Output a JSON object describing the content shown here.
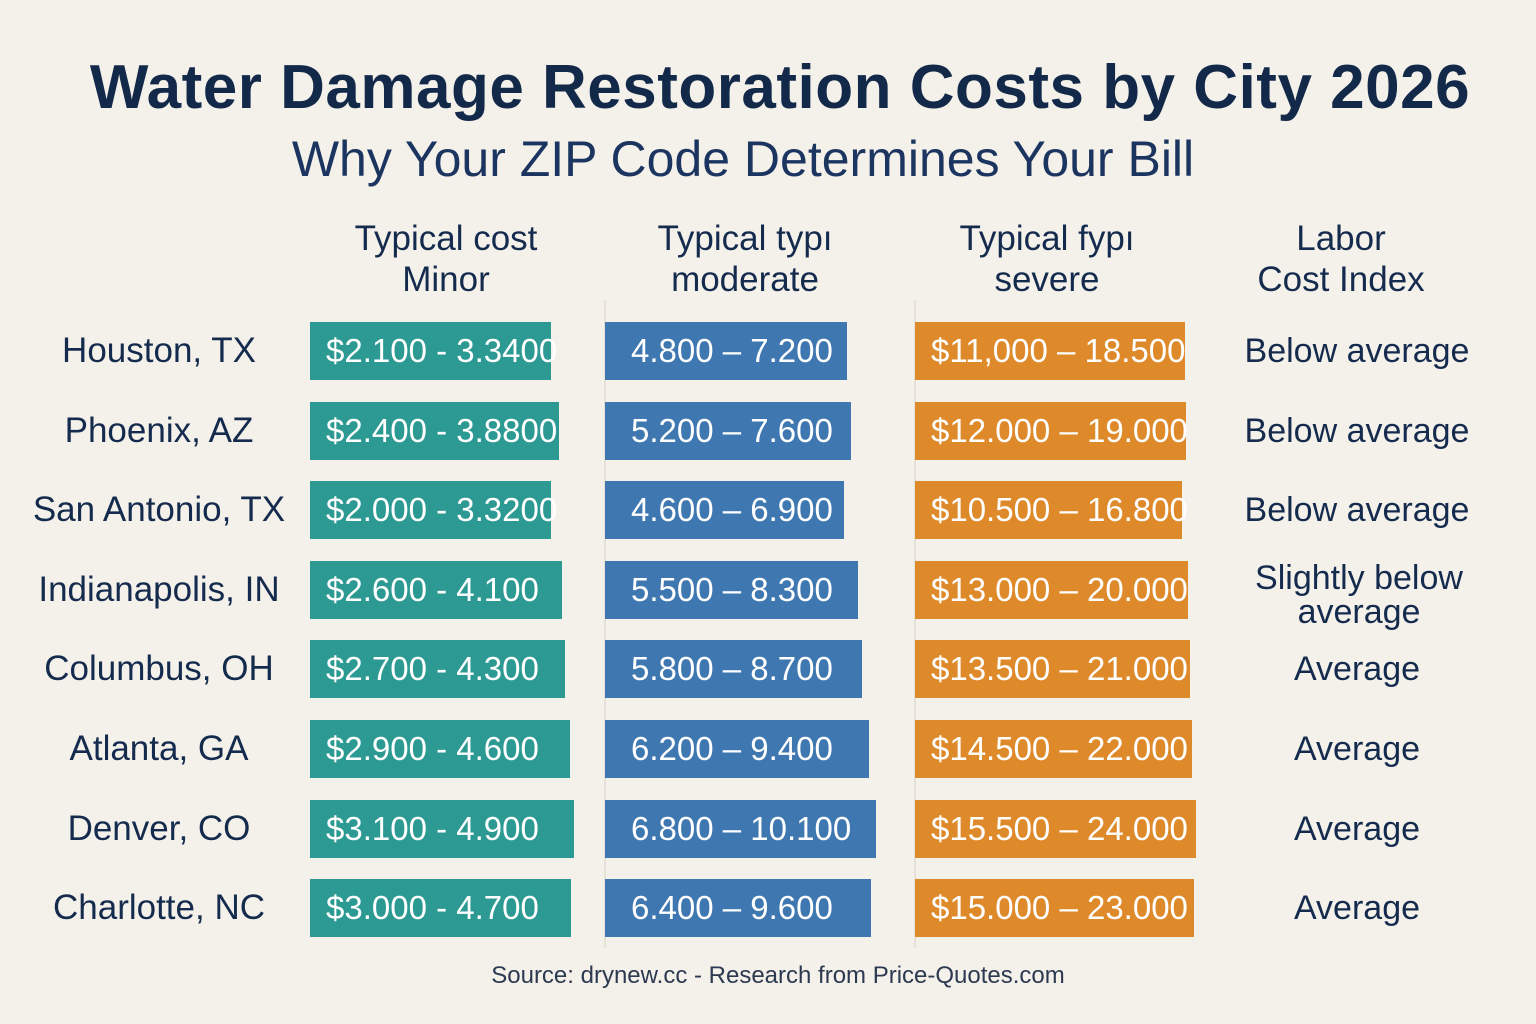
{
  "title": "Water Damage Restoration Costs by City 2026",
  "subtitle": "Why Your ZIP Code Determines Your Bill",
  "columns": [
    {
      "line1": "Typical cost",
      "line2": "Minor"
    },
    {
      "line1": "Typical typı",
      "line2": "moderate"
    },
    {
      "line1": "Typical fypı",
      "line2": "severe"
    },
    {
      "line1": "Labor",
      "line2": "Cost Index"
    }
  ],
  "rows": [
    {
      "city": "Houston, TX",
      "minor": "$2.100 - 3.3400",
      "moderate": "4.800 – 7.200",
      "severe": "$11,000 – 18.500",
      "index": "Below average"
    },
    {
      "city": "Phoenix, AZ",
      "minor": "$2.400 - 3.8800",
      "moderate": "5.200 – 7.600",
      "severe": "$12.000 – 19.000",
      "index": "Below average"
    },
    {
      "city": "San Antonio, TX",
      "minor": "$2.000 - 3.3200",
      "moderate": "4.600 – 6.900",
      "severe": "$10.500 – 16.800",
      "index": "Below average"
    },
    {
      "city": "Indianapolis, IN",
      "minor": "$2.600 - 4.100",
      "moderate": "5.500 – 8.300",
      "severe": "$13.000 – 20.000",
      "index": "Slightly below average"
    },
    {
      "city": "Columbus, OH",
      "minor": "$2.700 - 4.300",
      "moderate": "5.800 – 8.700",
      "severe": "$13.500 – 21.000",
      "index": "Average"
    },
    {
      "city": "Atlanta, GA",
      "minor": "$2.900 - 4.600",
      "moderate": "6.200 – 9.400",
      "severe": "$14.500 – 22.000",
      "index": "Average"
    },
    {
      "city": "Denver, CO",
      "minor": "$3.100 - 4.900",
      "moderate": "6.800 – 10.100",
      "severe": "$15.500 – 24.000",
      "index": "Average"
    },
    {
      "city": "Charlotte, NC",
      "minor": "$3.000 - 4.700",
      "moderate": "6.400 – 9.600",
      "severe": "$15.000 – 23.000",
      "index": "Average"
    }
  ],
  "source": "Source: drynew.cc - Research from Price-Quotes.com",
  "colors": {
    "minor": "#2c9a93",
    "moderate": "#3f78b1",
    "severe": "#df8a2a",
    "background": "#f4f1ea",
    "text": "#14284a"
  },
  "chart_data": {
    "type": "bar",
    "title": "Water Damage Restoration Costs by City 2026",
    "subtitle": "Why Your ZIP Code Determines Your Bill",
    "categories": [
      "Houston, TX",
      "Phoenix, AZ",
      "San Antonio, TX",
      "Indianapolis, IN",
      "Columbus, OH",
      "Atlanta, GA",
      "Denver, CO",
      "Charlotte, NC"
    ],
    "series": [
      {
        "name": "Typical cost Minor",
        "low": [
          2100,
          2400,
          2000,
          2600,
          2700,
          2900,
          3100,
          3000
        ],
        "high": [
          3340,
          3880,
          3320,
          4100,
          4300,
          4600,
          4900,
          4700
        ]
      },
      {
        "name": "Typical typı moderate",
        "low": [
          4800,
          5200,
          4600,
          5500,
          5800,
          6200,
          6800,
          6400
        ],
        "high": [
          7200,
          7600,
          6900,
          8300,
          8700,
          9400,
          10100,
          9600
        ]
      },
      {
        "name": "Typical fypı severe",
        "low": [
          11000,
          12000,
          10500,
          13000,
          13500,
          14500,
          15500,
          15000
        ],
        "high": [
          18500,
          19000,
          16800,
          20000,
          21000,
          22000,
          24000,
          23000
        ]
      }
    ],
    "labor_cost_index": [
      "Below average",
      "Below average",
      "Below average",
      "Slightly below average",
      "Average",
      "Average",
      "Average",
      "Average"
    ],
    "grid": false
  }
}
